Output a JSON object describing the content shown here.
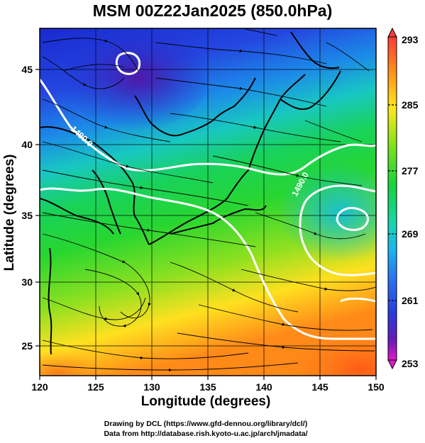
{
  "title": "MSM 00Z22Jan2025 (850.0hPa)",
  "axes": {
    "xlabel": "Longitude (degrees)",
    "ylabel": "Latitude  (degrees)",
    "x_ticks": [
      "120",
      "125",
      "130",
      "135",
      "140",
      "145",
      "150"
    ],
    "y_ticks": [
      "25",
      "30",
      "35",
      "40",
      "45"
    ]
  },
  "colorbar": {
    "labels": [
      "293",
      "285",
      "277",
      "269",
      "261",
      "253"
    ],
    "colors": [
      "#ff3b3b",
      "#ff8a1a",
      "#ffe81a",
      "#7de21a",
      "#14d43c",
      "#18d6b0",
      "#1ab4f0",
      "#2a6cf0",
      "#2a3ad8",
      "#6a1ab8",
      "#e01ac8"
    ]
  },
  "contour_labels": [
    "1490.0",
    "1490.0"
  ],
  "credits": {
    "line1": "Drawing by DCL (https://www.gfd-dennou.org/library/dcl/)",
    "line2": "Data from http://database.rish.kyoto-u.ac.jp/arch/jmadata/"
  }
}
